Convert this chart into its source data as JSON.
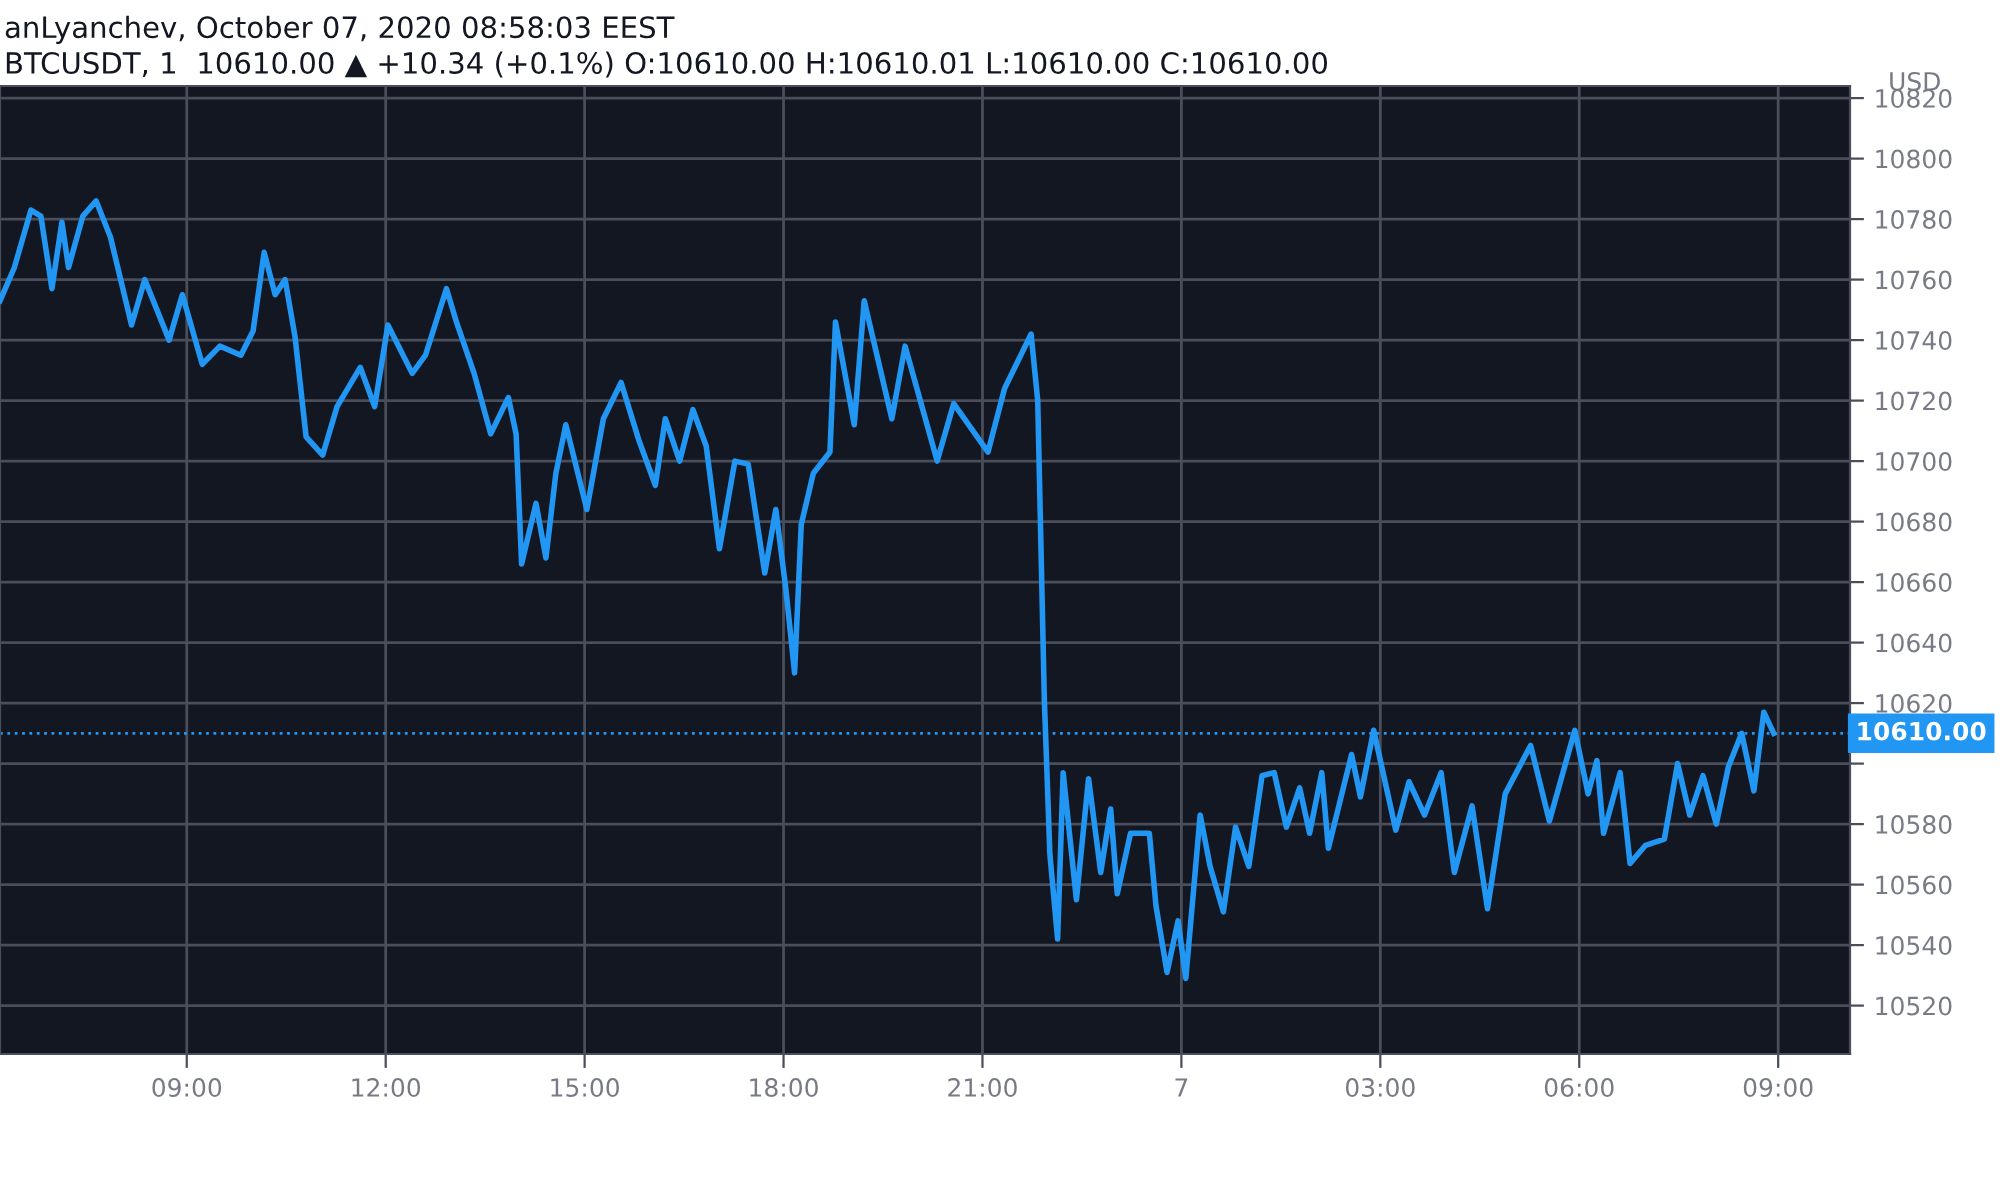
{
  "chart_data": {
    "type": "line",
    "title": "anLyanchev, October 07, 2020 08:58:03 EEST",
    "subtitle": "BTCUSDT, 1  10610.00 ▲ +10.34 (+0.1%) O:10610.00 H:10610.01 L:10610.00 C:10610.00",
    "ylabel": "USD",
    "x": [
      "2020-10-06T06:11",
      "2020-10-06T06:24",
      "2020-10-06T06:39",
      "2020-10-06T06:48",
      "2020-10-06T06:58",
      "2020-10-06T07:07",
      "2020-10-06T07:13",
      "2020-10-06T07:26",
      "2020-10-06T07:38",
      "2020-10-06T07:51",
      "2020-10-06T08:10",
      "2020-10-06T08:22",
      "2020-10-06T08:44",
      "2020-10-06T08:56",
      "2020-10-06T09:14",
      "2020-10-06T09:30",
      "2020-10-06T09:49",
      "2020-10-06T10:00",
      "2020-10-06T10:10",
      "2020-10-06T10:20",
      "2020-10-06T10:29",
      "2020-10-06T10:38",
      "2020-10-06T10:48",
      "2020-10-06T11:03",
      "2020-10-06T11:16",
      "2020-10-06T11:37",
      "2020-10-06T11:50",
      "2020-10-06T12:02",
      "2020-10-06T12:24",
      "2020-10-06T12:36",
      "2020-10-06T12:55",
      "2020-10-06T13:04",
      "2020-10-06T13:20",
      "2020-10-06T13:35",
      "2020-10-06T13:51",
      "2020-10-06T13:58",
      "2020-10-06T14:03",
      "2020-10-06T14:16",
      "2020-10-06T14:25",
      "2020-10-06T14:34",
      "2020-10-06T14:43",
      "2020-10-06T15:02",
      "2020-10-06T15:17",
      "2020-10-06T15:33",
      "2020-10-06T15:49",
      "2020-10-06T16:04",
      "2020-10-06T16:13",
      "2020-10-06T16:26",
      "2020-10-06T16:38",
      "2020-10-06T16:50",
      "2020-10-06T17:02",
      "2020-10-06T17:16",
      "2020-10-06T17:28",
      "2020-10-06T17:43",
      "2020-10-06T17:53",
      "2020-10-06T18:02",
      "2020-10-06T18:10",
      "2020-10-06T18:16",
      "2020-10-06T18:27",
      "2020-10-06T18:42",
      "2020-10-06T18:47",
      "2020-10-06T19:04",
      "2020-10-06T19:13",
      "2020-10-06T19:38",
      "2020-10-06T19:50",
      "2020-10-06T20:19",
      "2020-10-06T20:34",
      "2020-10-06T21:05",
      "2020-10-06T21:20",
      "2020-10-06T21:44",
      "2020-10-06T21:50",
      "2020-10-06T21:56",
      "2020-10-06T22:01",
      "2020-10-06T22:08",
      "2020-10-06T22:13",
      "2020-10-06T22:25",
      "2020-10-06T22:36",
      "2020-10-06T22:47",
      "2020-10-06T22:56",
      "2020-10-06T23:02",
      "2020-10-06T23:14",
      "2020-10-06T23:31",
      "2020-10-06T23:37",
      "2020-10-06T23:47",
      "2020-10-06T23:57",
      "2020-10-07T00:04",
      "2020-10-07T00:17",
      "2020-10-07T00:26",
      "2020-10-07T00:38",
      "2020-10-07T00:49",
      "2020-10-07T01:01",
      "2020-10-07T01:13",
      "2020-10-07T01:24",
      "2020-10-07T01:35",
      "2020-10-07T01:47",
      "2020-10-07T01:56",
      "2020-10-07T02:07",
      "2020-10-07T02:13",
      "2020-10-07T02:34",
      "2020-10-07T02:42",
      "2020-10-07T02:54",
      "2020-10-07T03:14",
      "2020-10-07T03:26",
      "2020-10-07T03:40",
      "2020-10-07T03:55",
      "2020-10-07T04:07",
      "2020-10-07T04:23",
      "2020-10-07T04:37",
      "2020-10-07T04:53",
      "2020-10-07T05:16",
      "2020-10-07T05:33",
      "2020-10-07T05:56",
      "2020-10-07T06:08",
      "2020-10-07T06:16",
      "2020-10-07T06:22",
      "2020-10-07T06:37",
      "2020-10-07T06:46",
      "2020-10-07T07:00",
      "2020-10-07T07:17",
      "2020-10-07T07:29",
      "2020-10-07T07:40",
      "2020-10-07T07:52",
      "2020-10-07T08:04",
      "2020-10-07T08:15",
      "2020-10-07T08:27",
      "2020-10-07T08:38",
      "2020-10-07T08:47",
      "2020-10-07T08:56"
    ],
    "series": [
      {
        "color": "#2196f3",
        "values": [
          10753,
          10764,
          10783,
          10781,
          10757,
          10779,
          10764,
          10781,
          10786,
          10774,
          10745,
          10760,
          10740,
          10755,
          10732,
          10738,
          10735,
          10743,
          10769,
          10755,
          10760,
          10741,
          10708,
          10702,
          10718,
          10731,
          10718,
          10745,
          10729,
          10735,
          10757,
          10746,
          10729,
          10709,
          10721,
          10709,
          10666,
          10686,
          10668,
          10696,
          10712,
          10684,
          10714,
          10726,
          10707,
          10692,
          10714,
          10700,
          10717,
          10705,
          10671,
          10700,
          10699,
          10663,
          10684,
          10658,
          10630,
          10679,
          10696,
          10703,
          10746,
          10712,
          10753,
          10714,
          10738,
          10700,
          10719,
          10703,
          10724,
          10742,
          10720,
          10621,
          10570,
          10542,
          10597,
          10555,
          10595,
          10564,
          10585,
          10557,
          10577,
          10577,
          10553,
          10531,
          10548,
          10529,
          10583,
          10566,
          10551,
          10579,
          10566,
          10596,
          10597,
          10579,
          10592,
          10577,
          10597,
          10572,
          10603,
          10589,
          10611,
          10578,
          10594,
          10583,
          10597,
          10564,
          10586,
          10552,
          10590,
          10606,
          10581,
          10611,
          10590,
          10601,
          10577,
          10597,
          10567,
          10573,
          10575,
          10600,
          10583,
          10596,
          10580,
          10599,
          10610,
          10591,
          10617,
          10610
        ]
      }
    ],
    "xlim": [
      "2020-10-06T06:11",
      "2020-10-07T10:05"
    ],
    "xticks": [
      {
        "value": "2020-10-06T09:00",
        "label": "09:00"
      },
      {
        "value": "2020-10-06T12:00",
        "label": "12:00"
      },
      {
        "value": "2020-10-06T15:00",
        "label": "15:00"
      },
      {
        "value": "2020-10-06T18:00",
        "label": "18:00"
      },
      {
        "value": "2020-10-06T21:00",
        "label": "21:00"
      },
      {
        "value": "2020-10-07T00:00",
        "label": "7"
      },
      {
        "value": "2020-10-07T03:00",
        "label": "03:00"
      },
      {
        "value": "2020-10-07T06:00",
        "label": "06:00"
      },
      {
        "value": "2020-10-07T09:00",
        "label": "09:00"
      }
    ],
    "ylim": [
      10504,
      10824
    ],
    "yticks": [
      10520,
      10540,
      10560,
      10580,
      {
        "value": 10600,
        "label": null
      },
      10620,
      10640,
      10660,
      10680,
      10700,
      10720,
      10740,
      10760,
      10780,
      10800,
      10820
    ],
    "ref_lines": [
      {
        "axis": "y",
        "value": 10610,
        "label": "10610.00",
        "color": "#2196f3",
        "line_style": "dotted"
      }
    ],
    "grid": true,
    "line_style": "solid"
  }
}
